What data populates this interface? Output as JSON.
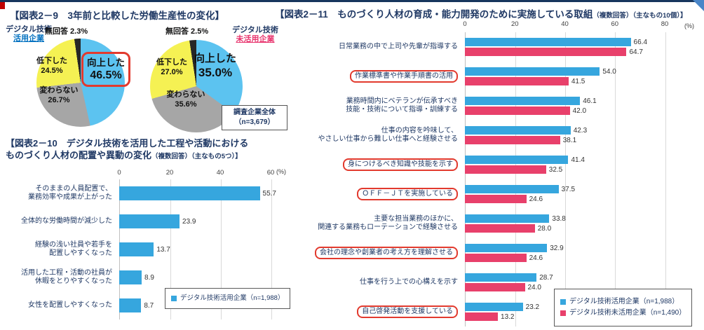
{
  "colors": {
    "navy": "#1f3864",
    "bar_blue": "#36a6de",
    "bar_pink": "#e8406b",
    "pie_blue": "#5cc3f0",
    "pie_gray": "#a6a6a6",
    "pie_yellow": "#f5f153",
    "pie_black": "#262626",
    "highlight_red": "#e23a2e",
    "link_blue": "#0070c0",
    "magenta": "#e8336d"
  },
  "percent_label": "(%)",
  "fig9": {
    "title": "【図表2－9　3年前と比較した労働生産性の変化】",
    "pie1": {
      "org_line1": "デジタル技術",
      "org_line2": "活用企業",
      "no_answer": "無回答 2.3%",
      "down_label": "低下した",
      "down_pct": "24.5%",
      "same_label": "変わらない",
      "same_pct": "26.7%",
      "up_label": "向上した",
      "up_pct": "46.5%"
    },
    "pie2": {
      "org_line1": "デジタル技術",
      "org_line2": "未活用企業",
      "no_answer": "無回答 2.5%",
      "down_label": "低下した",
      "down_pct": "27.0%",
      "same_label": "変わらない",
      "same_pct": "35.6%",
      "up_label": "向上した",
      "up_pct": "35.0%"
    },
    "note_line1": "調査企業全体",
    "note_line2": "（n=3,679）"
  },
  "fig10": {
    "title_line1": "【図表2－10　デジタル技術を活用した工程や活動における",
    "title_line2": "ものづくり人材の配置や異動の変化",
    "title_suffix": "（複数回答）（主なもの5つ）】",
    "legend": "デジタル技術活用企業（n=1,988）"
  },
  "fig11": {
    "title": "【図表2－11　ものづくり人材の育成・能力開発のために実施している取組",
    "title_suffix": "（複数回答）（主なもの10個）】",
    "legend1": "デジタル技術活用企業（n=1,988）",
    "legend2": "デジタル技術未活用企業（n=1,490）"
  },
  "chart_data": [
    {
      "id": "pie_digital_users",
      "type": "pie",
      "title": "デジタル技術活用企業",
      "labels": [
        "向上した",
        "変わらない",
        "低下した",
        "無回答"
      ],
      "values": [
        46.5,
        26.7,
        24.5,
        2.3
      ],
      "colors": [
        "#5cc3f0",
        "#a6a6a6",
        "#f5f153",
        "#262626"
      ],
      "highlight": "向上した"
    },
    {
      "id": "pie_digital_nonusers",
      "type": "pie",
      "title": "デジタル技術未活用企業",
      "labels": [
        "向上した",
        "変わらない",
        "低下した",
        "無回答"
      ],
      "values": [
        35.0,
        35.6,
        27.0,
        2.5
      ],
      "colors": [
        "#5cc3f0",
        "#a6a6a6",
        "#f5f153",
        "#262626"
      ]
    },
    {
      "id": "fig10_bar",
      "type": "bar",
      "title": "デジタル技術を活用した工程や活動におけるものづくり人材の配置や異動の変化",
      "categories": [
        "そのままの人員配置で、\n業務効率や成果が上がった",
        "全体的な労働時間が減少した",
        "経験の浅い社員や若手を\n配置しやすくなった",
        "活用した工程・活動の社員が\n休暇をとりやすくなった",
        "女性を配置しやすくなった"
      ],
      "values": [
        55.7,
        23.9,
        13.7,
        8.9,
        8.7
      ],
      "bar_color": "#36a6de",
      "xlim": [
        0,
        60
      ],
      "xticks": [
        0,
        20,
        40,
        60
      ],
      "xlabel": "(%)",
      "legend": "デジタル技術活用企業（n=1,988）",
      "legend_position": "bottom-right-inside"
    },
    {
      "id": "fig11_bar",
      "type": "bar",
      "title": "ものづくり人材の育成・能力開発のために実施している取組",
      "categories": [
        "日常業務の中で上司や先輩が指導する",
        "作業標準書や作業手順書の活用",
        "業務時間内にベテランが伝承すべき\n技能・技術について指導・訓練する",
        "仕事の内容を吟味して、\nやさしい仕事から難しい仕事へと経験させる",
        "身につけるべき知識や技能を示す",
        "ＯＦＦ－ＪＴを実施している",
        "主要な担当業務のほかに、\n関連する業務もローテーションで経験させる",
        "会社の理念や創業者の考え方を理解させる",
        "仕事を行う上での心構えを示す",
        "自己啓発活動を支援している"
      ],
      "highlighted": [
        1,
        4,
        5,
        7,
        9
      ],
      "series": [
        {
          "name": "デジタル技術活用企業（n=1,988）",
          "color": "#36a6de",
          "values": [
            66.4,
            54.0,
            46.1,
            42.3,
            41.4,
            37.5,
            33.8,
            32.9,
            28.7,
            23.2
          ]
        },
        {
          "name": "デジタル技術未活用企業（n=1,490）",
          "color": "#e8406b",
          "values": [
            64.7,
            41.5,
            42.0,
            38.1,
            32.5,
            24.6,
            28.0,
            24.6,
            24.0,
            13.2
          ]
        }
      ],
      "xlim": [
        0,
        80
      ],
      "xticks": [
        0,
        20,
        40,
        60,
        80
      ],
      "xlabel": "(%)",
      "legend_position": "bottom-right-inside"
    }
  ]
}
